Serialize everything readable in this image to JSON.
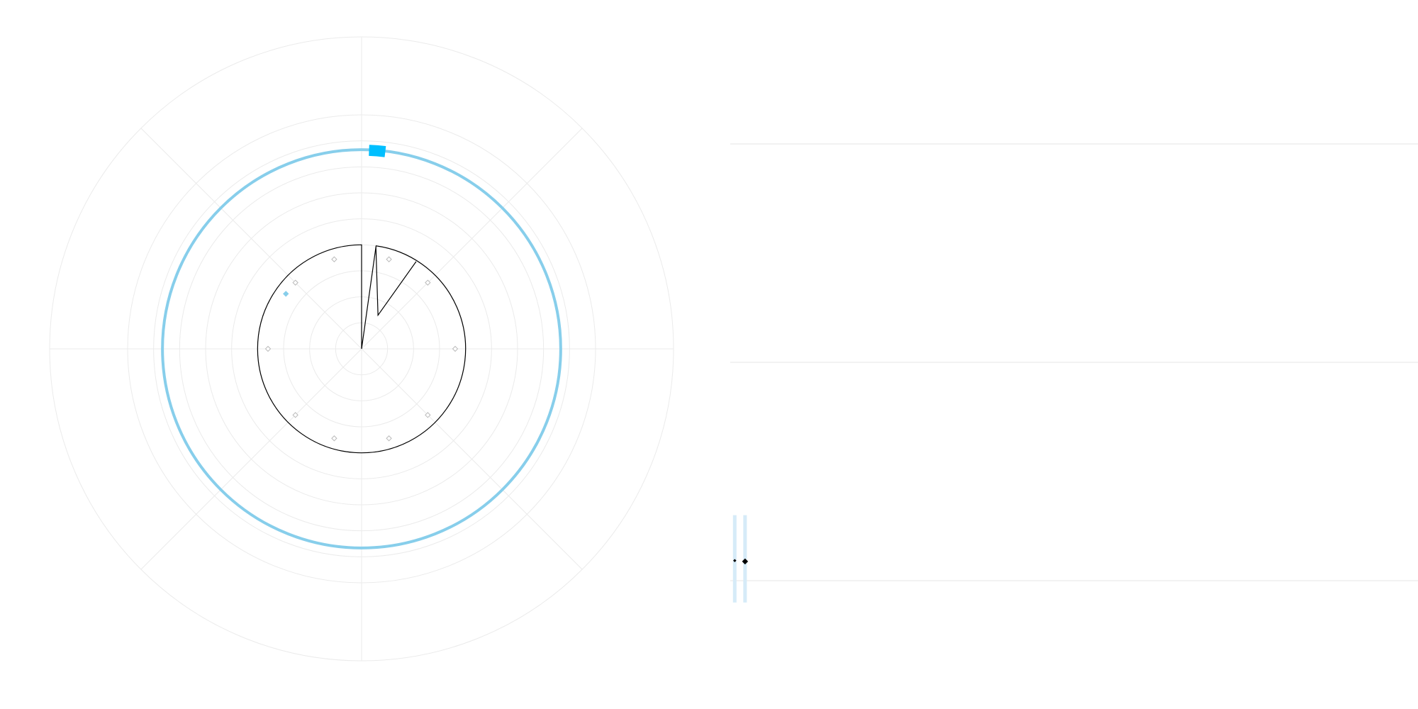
{
  "chart_data": [
    {
      "type": "polar",
      "grid": true,
      "legend": "none",
      "radial_range": [
        0,
        6
      ],
      "radial_gridlines": [
        0.5,
        1,
        1.5,
        2,
        2.5,
        3,
        3.5,
        4,
        4.5
      ],
      "spokes_deg": [
        0,
        45,
        90,
        135,
        180,
        225,
        270,
        315
      ],
      "series": [
        {
          "kind": "circle",
          "radius": 3.83,
          "color": "#87ceeb"
        },
        {
          "kind": "wedge",
          "theta_deg": [
            8,
            360
          ],
          "radius": 2,
          "color": "#00bfff"
        },
        {
          "kind": "polyline",
          "theta_deg": [
            0,
            8,
            26,
            32
          ],
          "radius": [
            1.98,
            1.98,
            0.48,
            1.98
          ],
          "color": "#000000",
          "closed": false
        },
        {
          "kind": "markers",
          "marker": "diamond",
          "color": "#bbbbbb",
          "r": [
            1.8,
            1.8,
            1.8,
            1.8,
            1.8,
            1.8,
            1.8,
            1.8,
            1.8,
            1.8
          ],
          "theta_deg": [
            17,
            45,
            90,
            135,
            163,
            197,
            225,
            270,
            315,
            343
          ]
        },
        {
          "kind": "markers",
          "marker": "diamond",
          "color": "#87ceeb",
          "r": [
            1.8
          ],
          "theta_deg": [
            -54
          ]
        },
        {
          "kind": "bar",
          "theta_deg": 4.5,
          "radius_range": [
            3.72,
            3.92
          ],
          "width_deg": 4.5,
          "color": "#00bfff"
        }
      ]
    },
    {
      "type": "scatter",
      "grid": true,
      "xlim": [
        0,
        1
      ],
      "ylim": [
        0,
        1
      ],
      "gridlines_y": [
        0,
        0.25,
        0.5,
        0.75,
        1
      ],
      "series": [
        {
          "kind": "vertical-bands",
          "x": [
            0.0065,
            0.0215
          ],
          "y_range": [
            0.225,
            0.325
          ],
          "color": "#d6ebf8"
        },
        {
          "kind": "points",
          "x": [
            0.0065,
            0.0215
          ],
          "y": [
            0.273,
            0.272
          ],
          "size": [
            2,
            4
          ],
          "color": "#000000"
        }
      ]
    }
  ]
}
